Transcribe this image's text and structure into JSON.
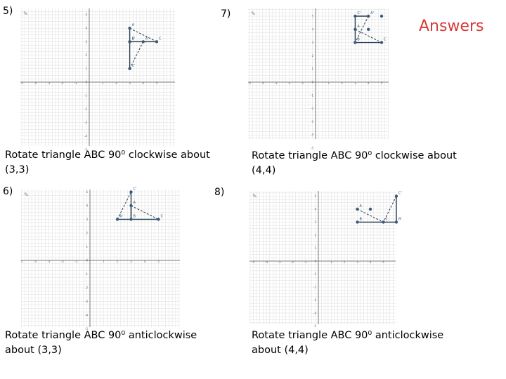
{
  "title": "Answers",
  "accent_color": "#d73a3a",
  "point_color": "#3a5a7c",
  "segment_color": "#2b3b4c",
  "grid_color": "#dcdcdc",
  "icon": "pencil-icon",
  "problems": [
    {
      "number": "5)",
      "caption_line1": "Rotate triangle ABC 90⁰ clockwise about",
      "caption_line2": "(3,3)",
      "graph": {
        "x_range": [
          -5,
          6
        ],
        "y_range": [
          -5,
          5
        ],
        "x_ticks": [
          "-5",
          "-4",
          "-3",
          "-2",
          "-1",
          "0",
          "1",
          "2",
          "3",
          "4",
          "5"
        ],
        "y_ticks": [
          "5",
          "4",
          "3",
          "2",
          "1",
          "0",
          "-1",
          "-2",
          "-3",
          "-4",
          "-5"
        ],
        "points": [
          {
            "label": "A",
            "x": 3,
            "y": 4
          },
          {
            "label": "B",
            "x": 3,
            "y": 3
          },
          {
            "label": "C",
            "x": 5,
            "y": 3
          },
          {
            "label": "B'",
            "x": 3,
            "y": 3
          },
          {
            "label": "A'",
            "x": 4,
            "y": 3
          },
          {
            "label": "C'",
            "x": 3,
            "y": 1
          }
        ],
        "solid": [
          [
            3,
            4,
            3,
            3
          ],
          [
            3,
            3,
            5,
            3
          ],
          [
            3,
            3,
            3,
            1
          ]
        ],
        "dashed": [
          [
            3,
            4,
            5,
            3
          ],
          [
            4,
            3,
            3,
            1
          ]
        ]
      }
    },
    {
      "number": "6)",
      "caption_line1": "Rotate triangle ABC 90⁰ anticlockwise",
      "caption_line2": "about (3,3)",
      "graph": {
        "x_range": [
          -5,
          6
        ],
        "y_range": [
          -5,
          5
        ],
        "x_ticks": [
          "-5",
          "-4",
          "-3",
          "-2",
          "-1",
          "0",
          "1",
          "2",
          "3",
          "4",
          "5"
        ],
        "y_ticks": [
          "5",
          "4",
          "3",
          "2",
          "1",
          "0",
          "-1",
          "-2",
          "-3",
          "-4",
          "-5"
        ],
        "points": [
          {
            "label": "A",
            "x": 3,
            "y": 4
          },
          {
            "label": "B",
            "x": 3,
            "y": 3
          },
          {
            "label": "C",
            "x": 5,
            "y": 3
          },
          {
            "label": "A'",
            "x": 2,
            "y": 3
          },
          {
            "label": "C'",
            "x": 3,
            "y": 5
          }
        ],
        "solid": [
          [
            3,
            5,
            3,
            3
          ],
          [
            2,
            3,
            5,
            3
          ],
          [
            3,
            4,
            3,
            3
          ]
        ],
        "dashed": [
          [
            3,
            4,
            5,
            3
          ],
          [
            2,
            3,
            3,
            5
          ]
        ]
      }
    },
    {
      "number": "7)",
      "caption_line1": "Rotate triangle ABC 90⁰ clockwise about",
      "caption_line2": "(4,4)",
      "graph": {
        "x_range": [
          -5,
          6
        ],
        "y_range": [
          -5,
          5
        ],
        "x_ticks": [
          "-5",
          "-4",
          "-3",
          "-2",
          "-1",
          "0",
          "1",
          "2",
          "3",
          "4",
          "5"
        ],
        "y_ticks": [
          "5",
          "4",
          "3",
          "2",
          "1",
          "0",
          "-1",
          "-2",
          "-3",
          "-4",
          "-5"
        ],
        "points": [
          {
            "label": "C'",
            "x": 3,
            "y": 5
          },
          {
            "label": "A'",
            "x": 4,
            "y": 5
          },
          {
            "label": "A",
            "x": 3,
            "y": 4
          },
          {
            "label": "B",
            "x": 3,
            "y": 3
          },
          {
            "label": "C",
            "x": 5,
            "y": 3
          },
          {
            "label": "",
            "x": 4,
            "y": 4
          },
          {
            "label": "",
            "x": 5,
            "y": 5
          }
        ],
        "solid": [
          [
            3,
            5,
            3,
            3
          ],
          [
            3,
            3,
            5,
            3
          ],
          [
            3,
            5,
            4,
            5
          ]
        ],
        "dashed": [
          [
            3,
            4,
            5,
            3
          ],
          [
            4,
            5,
            3,
            3
          ]
        ]
      }
    },
    {
      "number": "8)",
      "caption_line1": "Rotate triangle ABC 90⁰ anticlockwise",
      "caption_line2": "about (4,4)",
      "graph": {
        "x_range": [
          -5,
          6
        ],
        "y_range": [
          -5,
          5
        ],
        "x_ticks": [
          "-5",
          "-4",
          "-3",
          "-2",
          "-1",
          "0",
          "1",
          "2",
          "3",
          "4",
          "5"
        ],
        "y_ticks": [
          "5",
          "4",
          "3",
          "2",
          "1",
          "0",
          "-1",
          "-2",
          "-3",
          "-4",
          "-5"
        ],
        "points": [
          {
            "label": "A",
            "x": 3,
            "y": 4
          },
          {
            "label": "B",
            "x": 3,
            "y": 3
          },
          {
            "label": "C",
            "x": 5,
            "y": 3
          },
          {
            "label": "C'",
            "x": 6,
            "y": 5
          },
          {
            "label": "B'",
            "x": 6,
            "y": 3
          },
          {
            "label": "",
            "x": 4,
            "y": 4
          }
        ],
        "solid": [
          [
            3,
            3,
            6,
            3
          ],
          [
            6,
            5,
            6,
            3
          ]
        ],
        "dashed": [
          [
            3,
            4,
            5,
            3
          ],
          [
            6,
            5,
            5,
            3
          ]
        ]
      }
    }
  ]
}
